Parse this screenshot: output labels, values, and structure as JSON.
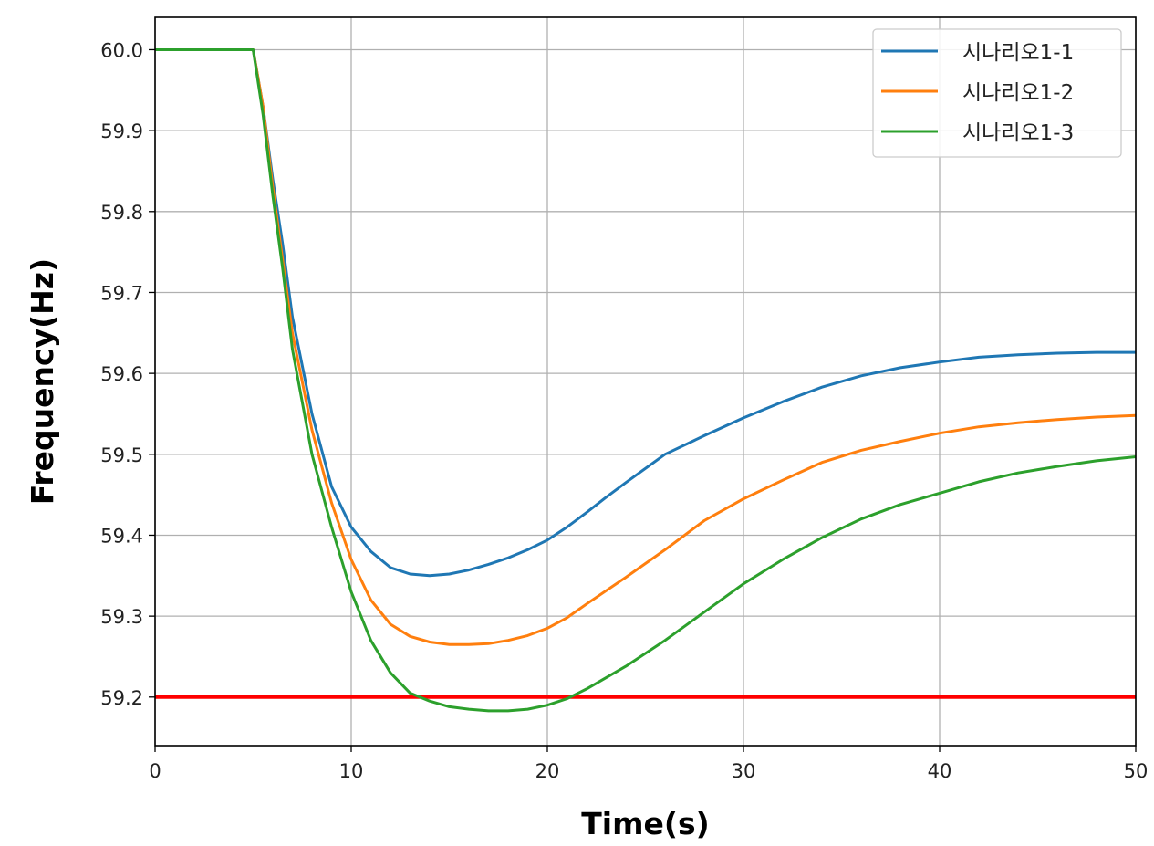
{
  "chart_data": {
    "type": "line",
    "title": "",
    "xlabel": "Time(s)",
    "ylabel": "Frequency(Hz)",
    "xlim": [
      0,
      50
    ],
    "ylim": [
      59.14,
      60.04
    ],
    "xticks": [
      "0",
      "10",
      "20",
      "30",
      "40",
      "50"
    ],
    "yticks": [
      "59.2",
      "59.3",
      "59.4",
      "59.5",
      "59.6",
      "59.7",
      "59.8",
      "59.9",
      "60.0"
    ],
    "grid": true,
    "legend_position": "top-right",
    "series": [
      {
        "name": "시나리오1-1",
        "color": "#1f77b4",
        "x": [
          0,
          5,
          5.5,
          6,
          6.5,
          7,
          8,
          9,
          10,
          11,
          12,
          13,
          14,
          15,
          16,
          17,
          18,
          19,
          20,
          21,
          22,
          23,
          24,
          26,
          28,
          30,
          32,
          34,
          36,
          38,
          40,
          42,
          44,
          46,
          48,
          50
        ],
        "values": [
          60.0,
          60.0,
          59.93,
          59.84,
          59.76,
          59.67,
          59.55,
          59.46,
          59.41,
          59.38,
          59.36,
          59.352,
          59.35,
          59.352,
          59.357,
          59.364,
          59.372,
          59.382,
          59.394,
          59.41,
          59.428,
          59.447,
          59.465,
          59.5,
          59.523,
          59.545,
          59.565,
          59.583,
          59.597,
          59.607,
          59.614,
          59.62,
          59.623,
          59.625,
          59.626,
          59.626
        ]
      },
      {
        "name": "시나리오1-2",
        "color": "#ff7f0e",
        "x": [
          0,
          5,
          5.5,
          6,
          6.5,
          7,
          8,
          9,
          10,
          11,
          12,
          13,
          14,
          15,
          16,
          17,
          18,
          19,
          20,
          21,
          22,
          24,
          26,
          28,
          30,
          32,
          34,
          36,
          38,
          40,
          42,
          44,
          46,
          48,
          50
        ],
        "values": [
          60.0,
          60.0,
          59.93,
          59.83,
          59.74,
          59.65,
          59.53,
          59.44,
          59.37,
          59.32,
          59.29,
          59.275,
          59.268,
          59.265,
          59.265,
          59.266,
          59.27,
          59.276,
          59.285,
          59.298,
          59.315,
          59.348,
          59.382,
          59.418,
          59.445,
          59.468,
          59.49,
          59.505,
          59.516,
          59.526,
          59.534,
          59.539,
          59.543,
          59.546,
          59.548
        ]
      },
      {
        "name": "시나리오1-3",
        "color": "#2ca02c",
        "x": [
          0,
          5,
          5.5,
          6,
          6.5,
          7,
          8,
          9,
          10,
          11,
          12,
          13,
          14,
          15,
          16,
          17,
          18,
          19,
          20,
          21,
          22,
          24,
          26,
          28,
          30,
          32,
          34,
          36,
          38,
          40,
          42,
          44,
          46,
          48,
          50
        ],
        "values": [
          60.0,
          60.0,
          59.92,
          59.82,
          59.73,
          59.63,
          59.5,
          59.41,
          59.33,
          59.27,
          59.23,
          59.205,
          59.195,
          59.188,
          59.185,
          59.183,
          59.183,
          59.185,
          59.19,
          59.198,
          59.21,
          59.238,
          59.27,
          59.305,
          59.34,
          59.37,
          59.397,
          59.42,
          59.438,
          59.452,
          59.466,
          59.477,
          59.485,
          59.492,
          59.497
        ]
      }
    ],
    "annotations": [
      {
        "type": "hline",
        "y": 59.2,
        "color": "#ff0000"
      }
    ]
  }
}
